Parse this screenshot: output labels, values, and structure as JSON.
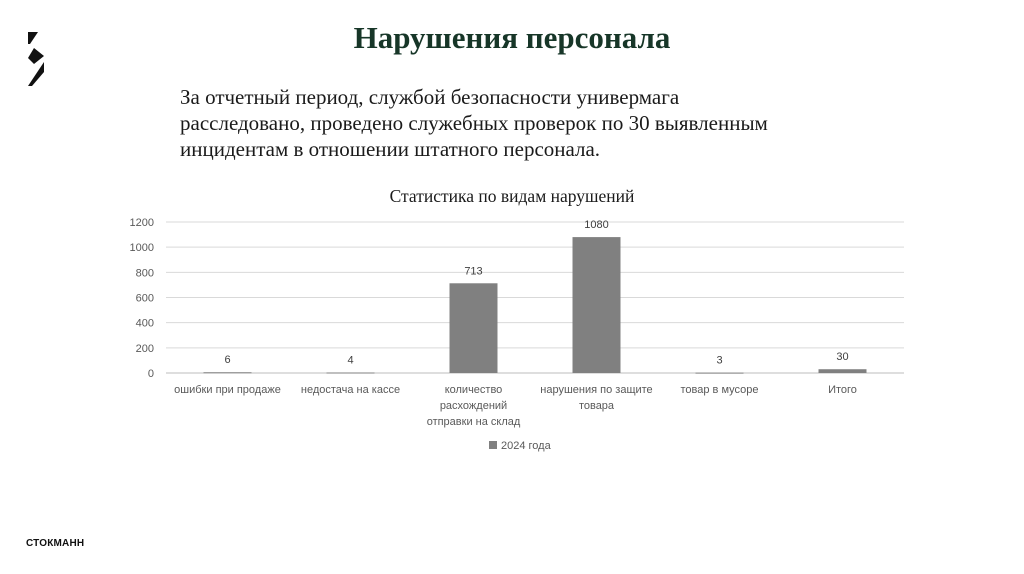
{
  "slide": {
    "title": "Нарушения персонала",
    "body_lines": [
      "За отчетный период, службой безопасности универмага",
      "расследовано, проведено служебных проверок по 30 выявленным",
      "инцидентам в отношении штатного персонала."
    ],
    "brand": "СТОКМАНН",
    "logo_icon": "stockmann-s-logo-icon"
  },
  "chart_data": {
    "type": "bar",
    "title": "Статистика по видам нарушений",
    "categories": [
      [
        "ошибки при продаже"
      ],
      [
        "недостача на кассе"
      ],
      [
        "количество",
        "расхождений",
        "отправки на склад"
      ],
      [
        "нарушения по защите",
        "товара"
      ],
      [
        "товар в мусоре"
      ],
      [
        "Итого"
      ]
    ],
    "series": [
      {
        "name": "2024 года",
        "values": [
          6,
          4,
          713,
          1080,
          3,
          30
        ],
        "color": "#808080"
      }
    ],
    "yticks": [
      0,
      200,
      400,
      600,
      800,
      1000,
      1200
    ],
    "ylim": [
      0,
      1200
    ],
    "grid": true,
    "legend": "bottom-center",
    "data_labels": true
  }
}
